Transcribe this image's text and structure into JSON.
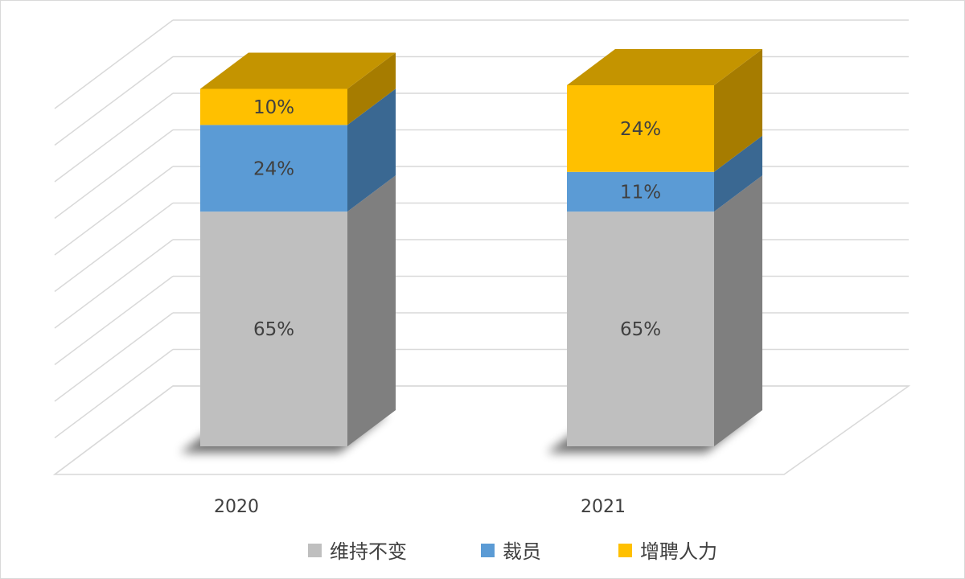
{
  "chart_data": {
    "type": "bar",
    "stacked": true,
    "three_d": true,
    "categories": [
      "2020",
      "2021"
    ],
    "series": [
      {
        "name": "维持不变",
        "values": [
          65,
          65
        ],
        "labels": [
          "65%",
          "65%"
        ],
        "color": "#bfbfbf",
        "side": "#7f7f7f",
        "top": "#a6a6a6"
      },
      {
        "name": "裁员",
        "values": [
          24,
          11
        ],
        "labels": [
          "24%",
          "11%"
        ],
        "color": "#5b9bd5",
        "side": "#3a6892",
        "top": "#4a80b0"
      },
      {
        "name": "增聘人力",
        "values": [
          10,
          24
        ],
        "labels": [
          "10%",
          "24%"
        ],
        "color": "#ffc000",
        "side": "#a67c00",
        "top": "#c49400"
      }
    ],
    "ylim": [
      0,
      100
    ],
    "grid": true,
    "legend": "bottom"
  }
}
